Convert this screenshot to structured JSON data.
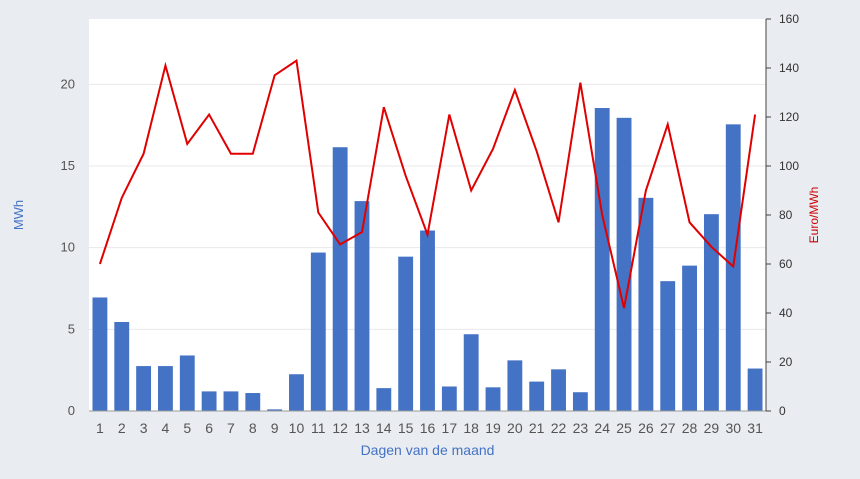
{
  "chart_data": {
    "type": "bar+line",
    "title": "",
    "xlabel": "Dagen van de maand",
    "categories": [
      "1",
      "2",
      "3",
      "4",
      "5",
      "6",
      "7",
      "8",
      "9",
      "10",
      "11",
      "12",
      "13",
      "14",
      "15",
      "16",
      "17",
      "18",
      "19",
      "20",
      "21",
      "22",
      "23",
      "24",
      "25",
      "26",
      "27",
      "28",
      "29",
      "30",
      "31"
    ],
    "y_left": {
      "label": "MWh",
      "lim": [
        0,
        24
      ],
      "ticks": [
        0,
        5,
        10,
        15,
        20
      ],
      "tick_labels": [
        "0",
        "5",
        "10",
        "15",
        "20"
      ]
    },
    "y_right": {
      "label": "Euro/MWh",
      "lim": [
        0,
        160
      ],
      "ticks": [
        0,
        20,
        40,
        60,
        80,
        100,
        120,
        140,
        160
      ],
      "tick_labels": [
        "0",
        "20",
        "40",
        "60",
        "80",
        "100",
        "120",
        "140",
        "160"
      ]
    },
    "series": [
      {
        "type": "bar",
        "axis": "left",
        "color": "#4472c4",
        "values": [
          6.95,
          5.45,
          2.75,
          2.75,
          3.4,
          1.2,
          1.2,
          1.1,
          0.1,
          2.25,
          9.7,
          16.15,
          12.85,
          1.4,
          9.45,
          11.05,
          1.5,
          4.7,
          1.45,
          3.1,
          1.8,
          2.55,
          1.15,
          18.55,
          17.95,
          13.05,
          7.95,
          8.9,
          12.05,
          17.55,
          2.6
        ]
      },
      {
        "type": "line",
        "axis": "right",
        "color": "#e00000",
        "values": [
          60,
          87,
          105,
          141,
          109,
          121,
          105,
          105,
          137,
          143,
          81,
          68,
          73,
          124,
          96,
          72,
          121,
          90,
          107,
          131,
          106,
          77,
          134,
          80,
          42,
          90,
          117,
          77,
          67,
          59,
          121
        ]
      }
    ],
    "grid": true,
    "legend": "none"
  },
  "colors": {
    "background": "#e9ecf0",
    "plot_background": "#ffffff",
    "axis_label": "#4472c4",
    "right_axis_label": "#cc0000"
  }
}
